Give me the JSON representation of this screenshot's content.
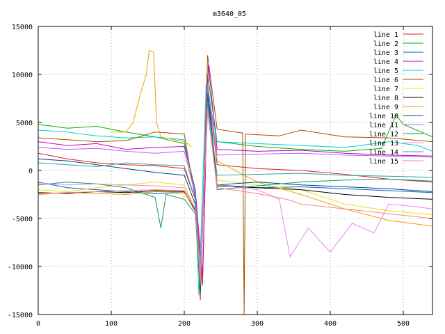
{
  "chart_data": {
    "type": "line",
    "title": "m3640_05",
    "xlabel": "",
    "ylabel": "",
    "xlim": [
      0,
      540
    ],
    "ylim": [
      -15000,
      15000
    ],
    "x_ticks": [
      0,
      100,
      200,
      300,
      400,
      500
    ],
    "y_ticks": [
      -15000,
      -10000,
      -5000,
      0,
      5000,
      10000,
      15000
    ],
    "grid": true,
    "legend_position": "top-right",
    "series": [
      {
        "name": "line 1",
        "color": "#e41a1c",
        "points": [
          [
            0,
            1800
          ],
          [
            40,
            1200
          ],
          [
            80,
            800
          ],
          [
            120,
            600
          ],
          [
            160,
            500
          ],
          [
            200,
            200
          ],
          [
            215,
            -3000
          ],
          [
            225,
            -12000
          ],
          [
            232,
            9000
          ],
          [
            245,
            600
          ],
          [
            300,
            200
          ],
          [
            360,
            0
          ],
          [
            420,
            -400
          ],
          [
            480,
            -900
          ],
          [
            540,
            -1200
          ]
        ]
      },
      {
        "name": "line 2",
        "color": "#00b000",
        "points": [
          [
            0,
            4800
          ],
          [
            40,
            4400
          ],
          [
            80,
            4600
          ],
          [
            120,
            4000
          ],
          [
            160,
            3500
          ],
          [
            200,
            2800
          ],
          [
            215,
            -2000
          ],
          [
            222,
            -11000
          ],
          [
            232,
            10000
          ],
          [
            245,
            3000
          ],
          [
            300,
            2500
          ],
          [
            360,
            2200
          ],
          [
            420,
            2000
          ],
          [
            470,
            2300
          ],
          [
            490,
            5800
          ],
          [
            500,
            4800
          ],
          [
            540,
            3500
          ]
        ]
      },
      {
        "name": "line 3",
        "color": "#0060d0",
        "points": [
          [
            0,
            -1200
          ],
          [
            40,
            -1800
          ],
          [
            80,
            -2000
          ],
          [
            120,
            -2200
          ],
          [
            160,
            -2400
          ],
          [
            200,
            -2300
          ],
          [
            215,
            -4000
          ],
          [
            222,
            -12500
          ],
          [
            232,
            9000
          ],
          [
            245,
            -1500
          ],
          [
            300,
            -1800
          ],
          [
            360,
            -1700
          ],
          [
            420,
            -1900
          ],
          [
            480,
            -2100
          ],
          [
            540,
            -2300
          ]
        ]
      },
      {
        "name": "line 4",
        "color": "#c000c0",
        "points": [
          [
            0,
            3000
          ],
          [
            40,
            2600
          ],
          [
            80,
            2800
          ],
          [
            120,
            2200
          ],
          [
            160,
            2400
          ],
          [
            200,
            2500
          ],
          [
            215,
            -2000
          ],
          [
            225,
            -11000
          ],
          [
            233,
            11000
          ],
          [
            245,
            2200
          ],
          [
            300,
            2000
          ],
          [
            360,
            2100
          ],
          [
            420,
            1800
          ],
          [
            480,
            1600
          ],
          [
            540,
            1500
          ]
        ]
      },
      {
        "name": "line 5",
        "color": "#00d0d0",
        "points": [
          [
            0,
            4200
          ],
          [
            40,
            4000
          ],
          [
            80,
            3600
          ],
          [
            120,
            3400
          ],
          [
            160,
            3500
          ],
          [
            200,
            3200
          ],
          [
            215,
            -2500
          ],
          [
            220,
            -13000
          ],
          [
            230,
            9000
          ],
          [
            245,
            3000
          ],
          [
            300,
            2800
          ],
          [
            360,
            2600
          ],
          [
            420,
            2400
          ],
          [
            480,
            3000
          ],
          [
            520,
            2600
          ],
          [
            540,
            2000
          ]
        ]
      },
      {
        "name": "line 6",
        "color": "#a05000",
        "points": [
          [
            0,
            3400
          ],
          [
            40,
            3200
          ],
          [
            80,
            3000
          ],
          [
            120,
            3100
          ],
          [
            160,
            4000
          ],
          [
            200,
            3800
          ],
          [
            215,
            -3000
          ],
          [
            222,
            -13500
          ],
          [
            232,
            12000
          ],
          [
            245,
            4300
          ],
          [
            280,
            3900
          ],
          [
            282,
            -15000
          ],
          [
            284,
            3800
          ],
          [
            330,
            3600
          ],
          [
            360,
            4200
          ],
          [
            420,
            3500
          ],
          [
            480,
            3400
          ],
          [
            540,
            3000
          ]
        ]
      },
      {
        "name": "line 7",
        "color": "#e8e800",
        "points": [
          [
            0,
            -2000
          ],
          [
            40,
            -2200
          ],
          [
            80,
            -1800
          ],
          [
            120,
            -1500
          ],
          [
            160,
            -1200
          ],
          [
            200,
            -1500
          ],
          [
            215,
            -4000
          ],
          [
            222,
            -11000
          ],
          [
            232,
            7000
          ],
          [
            245,
            -1000
          ],
          [
            300,
            -1500
          ],
          [
            360,
            -2000
          ],
          [
            420,
            -3500
          ],
          [
            480,
            -4200
          ],
          [
            540,
            -4600
          ]
        ]
      },
      {
        "name": "line 8",
        "color": "#000000",
        "points": [
          [
            0,
            -2300
          ],
          [
            40,
            -2400
          ],
          [
            80,
            -2200
          ],
          [
            120,
            -2300
          ],
          [
            160,
            -2100
          ],
          [
            200,
            -2200
          ],
          [
            215,
            -4200
          ],
          [
            222,
            -12000
          ],
          [
            232,
            8000
          ],
          [
            245,
            -1600
          ],
          [
            300,
            -1800
          ],
          [
            360,
            -2000
          ],
          [
            420,
            -2500
          ],
          [
            480,
            -2800
          ],
          [
            540,
            -3000
          ]
        ]
      },
      {
        "name": "line 9",
        "color": "#e8a000",
        "points": [
          [
            0,
            -2500
          ],
          [
            40,
            -2300
          ],
          [
            80,
            -2400
          ],
          [
            120,
            -2500
          ],
          [
            160,
            -2200
          ],
          [
            200,
            -2300
          ],
          [
            215,
            -4000
          ],
          [
            222,
            -12000
          ],
          [
            232,
            9000
          ],
          [
            245,
            1000
          ],
          [
            300,
            -1200
          ],
          [
            360,
            -2500
          ],
          [
            420,
            -4000
          ],
          [
            480,
            -5200
          ],
          [
            540,
            -5800
          ]
        ]
      },
      {
        "name": "line 10",
        "color": "#004080",
        "points": [
          [
            0,
            1200
          ],
          [
            40,
            1000
          ],
          [
            80,
            600
          ],
          [
            120,
            200
          ],
          [
            160,
            -200
          ],
          [
            200,
            -500
          ],
          [
            215,
            -3500
          ],
          [
            222,
            -12500
          ],
          [
            232,
            8000
          ],
          [
            245,
            -1500
          ],
          [
            300,
            -1200
          ],
          [
            360,
            -1500
          ],
          [
            420,
            -1700
          ],
          [
            480,
            -1900
          ],
          [
            540,
            -2200
          ]
        ]
      },
      {
        "name": "line 11",
        "color": "#b060ff",
        "points": [
          [
            0,
            2400
          ],
          [
            40,
            2200
          ],
          [
            80,
            2300
          ],
          [
            120,
            2000
          ],
          [
            160,
            1800
          ],
          [
            200,
            2000
          ],
          [
            215,
            -2500
          ],
          [
            222,
            -11000
          ],
          [
            232,
            9000
          ],
          [
            245,
            1600
          ],
          [
            300,
            1700
          ],
          [
            360,
            1800
          ],
          [
            420,
            1600
          ],
          [
            480,
            1500
          ],
          [
            540,
            1400
          ]
        ]
      },
      {
        "name": "line 12",
        "color": "#00a060",
        "points": [
          [
            0,
            -1500
          ],
          [
            40,
            -1200
          ],
          [
            80,
            -1400
          ],
          [
            120,
            -1800
          ],
          [
            160,
            -2800
          ],
          [
            168,
            -6000
          ],
          [
            175,
            -2500
          ],
          [
            200,
            -3000
          ],
          [
            215,
            -4500
          ],
          [
            222,
            -12000
          ],
          [
            232,
            7000
          ],
          [
            245,
            -2000
          ],
          [
            300,
            -1600
          ],
          [
            360,
            -1200
          ],
          [
            420,
            -1000
          ],
          [
            480,
            -900
          ],
          [
            540,
            -1100
          ]
        ]
      },
      {
        "name": "line 13",
        "color": "#f080f0",
        "points": [
          [
            0,
            -1300
          ],
          [
            40,
            -1500
          ],
          [
            80,
            -1400
          ],
          [
            120,
            -1500
          ],
          [
            160,
            -1600
          ],
          [
            200,
            -1800
          ],
          [
            215,
            -4000
          ],
          [
            222,
            -11000
          ],
          [
            232,
            6000
          ],
          [
            245,
            -1500
          ],
          [
            300,
            -2000
          ],
          [
            330,
            -3000
          ],
          [
            345,
            -9000
          ],
          [
            370,
            -6000
          ],
          [
            400,
            -8500
          ],
          [
            430,
            -5500
          ],
          [
            460,
            -6500
          ],
          [
            480,
            -3500
          ],
          [
            520,
            -3800
          ],
          [
            540,
            -4000
          ]
        ]
      },
      {
        "name": "line 14",
        "color": "#30a0a0",
        "points": [
          [
            0,
            800
          ],
          [
            40,
            600
          ],
          [
            80,
            400
          ],
          [
            120,
            800
          ],
          [
            160,
            600
          ],
          [
            200,
            500
          ],
          [
            215,
            -3000
          ],
          [
            222,
            -12000
          ],
          [
            232,
            7000
          ],
          [
            245,
            -500
          ],
          [
            300,
            -400
          ],
          [
            360,
            -300
          ],
          [
            420,
            -500
          ],
          [
            480,
            -600
          ],
          [
            540,
            -700
          ]
        ]
      },
      {
        "name": "line 15",
        "color": "#ff8080",
        "points": [
          [
            0,
            -2400
          ],
          [
            40,
            -2300
          ],
          [
            80,
            -2200
          ],
          [
            120,
            -2100
          ],
          [
            160,
            -2000
          ],
          [
            200,
            -2100
          ],
          [
            215,
            -4000
          ],
          [
            222,
            -11500
          ],
          [
            232,
            6500
          ],
          [
            245,
            -1800
          ],
          [
            300,
            -2400
          ],
          [
            340,
            -3000
          ],
          [
            360,
            -3500
          ],
          [
            420,
            -4000
          ],
          [
            480,
            -4500
          ],
          [
            540,
            -5000
          ]
        ]
      },
      {
        "name": "",
        "color": "#e8a000",
        "points": [
          [
            100,
            4000
          ],
          [
            120,
            4000
          ],
          [
            130,
            5000
          ],
          [
            140,
            8000
          ],
          [
            148,
            10000
          ],
          [
            152,
            12500
          ],
          [
            158,
            12300
          ],
          [
            162,
            5000
          ],
          [
            168,
            3500
          ],
          [
            200,
            3000
          ],
          [
            210,
            2500
          ]
        ]
      }
    ]
  }
}
